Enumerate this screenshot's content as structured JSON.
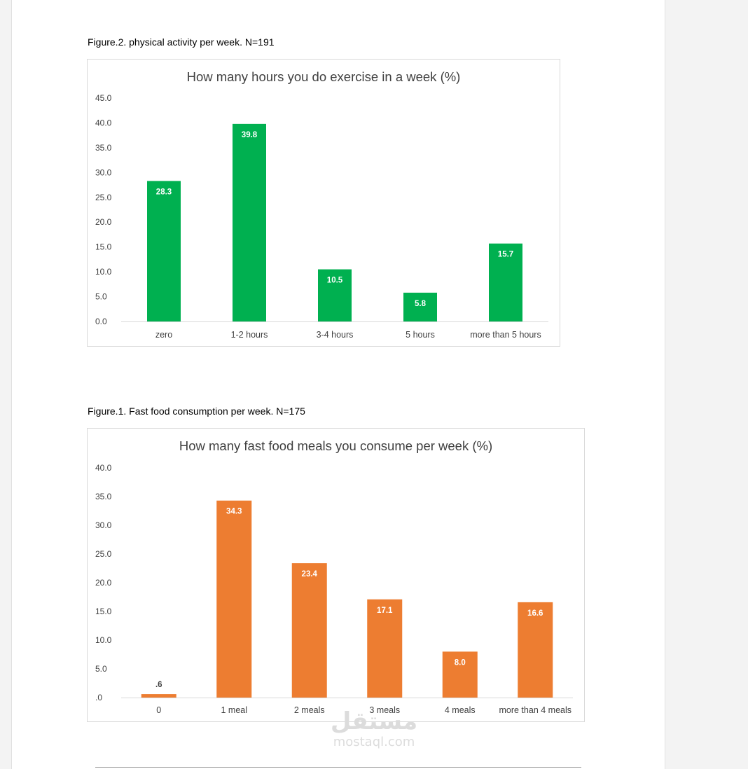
{
  "figures": [
    {
      "caption": "Figure.2. physical activity per week. N=191",
      "chart_data": {
        "type": "bar",
        "title": "How many hours you do exercise in a week (%)",
        "categories": [
          "zero",
          "1-2 hours",
          "3-4 hours",
          "5 hours",
          "more than 5 hours"
        ],
        "values": [
          28.3,
          39.8,
          10.5,
          5.8,
          15.7
        ],
        "data_labels": [
          "28.3",
          "39.8",
          "10.5",
          "5.8",
          "15.7"
        ],
        "yticks": [
          "0.0",
          "5.0",
          "10.0",
          "15.0",
          "20.0",
          "25.0",
          "30.0",
          "35.0",
          "40.0",
          "45.0"
        ],
        "ylim": [
          0,
          45
        ],
        "color": "#00b050",
        "grid": false,
        "legend": "none"
      }
    },
    {
      "caption": "Figure.1. Fast food consumption per week. N=175",
      "chart_data": {
        "type": "bar",
        "title": "How many fast food meals you consume per week (%)",
        "categories": [
          "0",
          "1 meal",
          "2 meals",
          "3 meals",
          "4 meals",
          "more than 4 meals"
        ],
        "values": [
          0.6,
          34.3,
          23.4,
          17.1,
          8.0,
          16.6
        ],
        "data_labels": [
          ".6",
          "34.3",
          "23.4",
          "17.1",
          "8.0",
          "16.6"
        ],
        "yticks": [
          ".0",
          "5.0",
          "10.0",
          "15.0",
          "20.0",
          "25.0",
          "30.0",
          "35.0",
          "40.0"
        ],
        "ylim": [
          0,
          40
        ],
        "color": "#ed7d31",
        "grid": false,
        "legend": "none"
      }
    }
  ],
  "watermark": {
    "logo": "مستقل",
    "text": "mostaql.com"
  }
}
